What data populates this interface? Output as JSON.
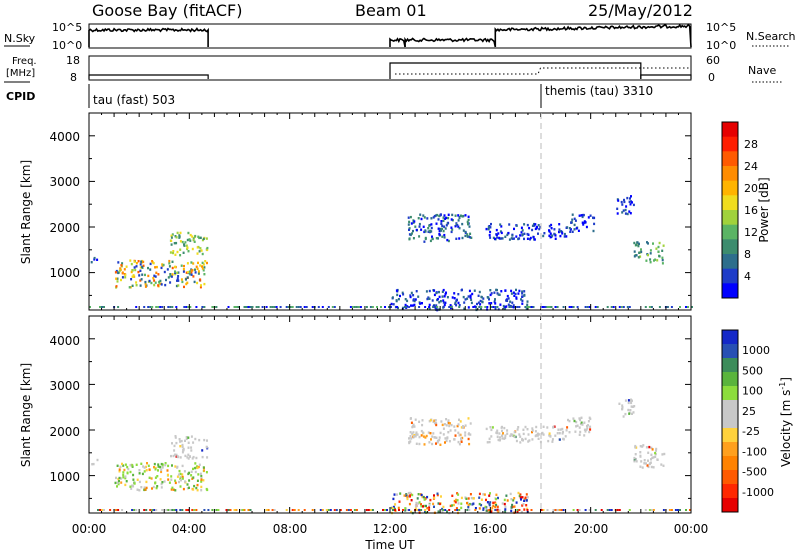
{
  "header": {
    "site": "Goose Bay (fitACF)",
    "beam": "Beam 01",
    "date": "25/May/2012"
  },
  "sky_panel": {
    "left_label": "N.Sky",
    "right_label": "N.Search",
    "left_ticks": [
      "10^5",
      "10^0"
    ],
    "right_ticks": [
      "10^5",
      "10^0"
    ]
  },
  "freq_panel": {
    "left_label_line1": "Freq.",
    "left_label_line2": "[MHz]",
    "left_ticks": [
      "18",
      "8"
    ],
    "right_label": "Nave",
    "right_ticks": [
      "60",
      "0"
    ]
  },
  "cpid_panel": {
    "label": "CPID",
    "segments": [
      {
        "name": "tau (fast) 503",
        "start_hour": 0.0
      },
      {
        "name": "themis (tau) 3310",
        "start_hour": 18.0
      }
    ]
  },
  "x_axis": {
    "label": "Time UT",
    "tick_labels": [
      "00:00",
      "04:00",
      "08:00",
      "12:00",
      "16:00",
      "20:00",
      "00:00"
    ],
    "range_hours": [
      0,
      24
    ]
  },
  "power_panel": {
    "ylabel": "Slant Range [km]",
    "y_ticks": [
      "4000",
      "3000",
      "2000",
      "1000"
    ],
    "colorbar_label": "Power [dB]",
    "colorbar_ticks": [
      "28",
      "24",
      "20",
      "16",
      "12",
      "8",
      "4"
    ],
    "colors": [
      "#0000ff",
      "#1e3cc8",
      "#2d6e8c",
      "#3c8c6e",
      "#5ab464",
      "#a0d23c",
      "#f0dc1e",
      "#ffb400",
      "#ff8c00",
      "#ff5a00",
      "#ff1e00",
      "#e60000"
    ]
  },
  "velocity_panel": {
    "ylabel": "Slant Range [km]",
    "y_ticks": [
      "4000",
      "3000",
      "2000",
      "1000"
    ],
    "colorbar_label": "Velocity [m s^-1]",
    "colorbar_ticks": [
      "1000",
      "500",
      "100",
      "25",
      "-25",
      "-100",
      "-500",
      "-1000"
    ],
    "colors": [
      "#1428c8",
      "#2850b4",
      "#3c8c5a",
      "#5ab43c",
      "#8cdc3c",
      "#c8c8c8",
      "#c8c8c8",
      "#ffd23c",
      "#ffa01e",
      "#ff8200",
      "#ff5a00",
      "#ff2800",
      "#e60000"
    ]
  },
  "chart_data": {
    "type": "heatmap",
    "x_unit": "hours UT",
    "y_unit": "km",
    "ylim": [
      180,
      4500
    ],
    "xlim": [
      0,
      24
    ],
    "scatter_regions": [
      {
        "t": [
          0.05,
          0.35
        ],
        "range": [
          1250,
          1400
        ],
        "power": "low",
        "velocity": "grey"
      },
      {
        "t": [
          1.0,
          4.7
        ],
        "range": [
          700,
          1300
        ],
        "power": "mixed 8-24",
        "velocity": "green/orange"
      },
      {
        "t": [
          3.2,
          4.7
        ],
        "range": [
          1400,
          1900
        ],
        "power": "12-20",
        "velocity": "grey"
      },
      {
        "t": [
          12.0,
          17.5
        ],
        "range": [
          200,
          650
        ],
        "power": "low",
        "velocity": "mixed"
      },
      {
        "t": [
          12.7,
          15.2
        ],
        "range": [
          1700,
          2300
        ],
        "power": "4-12",
        "velocity": "grey/orange"
      },
      {
        "t": [
          15.8,
          19.0
        ],
        "range": [
          1750,
          2100
        ],
        "power": "4-8",
        "velocity": "grey"
      },
      {
        "t": [
          19.0,
          20.1
        ],
        "range": [
          1900,
          2300
        ],
        "power": "4-8",
        "velocity": "grey"
      },
      {
        "t": [
          21.0,
          21.7
        ],
        "range": [
          2300,
          2700
        ],
        "power": "4-8",
        "velocity": "grey"
      },
      {
        "t": [
          21.7,
          22.9
        ],
        "range": [
          1200,
          1700
        ],
        "power": "8-16",
        "velocity": "grey"
      }
    ],
    "nsky": [
      {
        "t": [
          0,
          4.75
        ],
        "level": "high"
      },
      {
        "t": [
          12.0,
          12.6
        ],
        "level": "mid"
      },
      {
        "t": [
          12.6,
          16.2
        ],
        "level": "mid"
      },
      {
        "t": [
          16.2,
          24
        ],
        "level": "high"
      }
    ],
    "frequency_mhz": [
      {
        "t": [
          0,
          4.75
        ],
        "value": 10
      },
      {
        "t": [
          12.0,
          22.0
        ],
        "value": 16
      },
      {
        "t": [
          22.0,
          24
        ],
        "value": 10
      }
    ]
  }
}
